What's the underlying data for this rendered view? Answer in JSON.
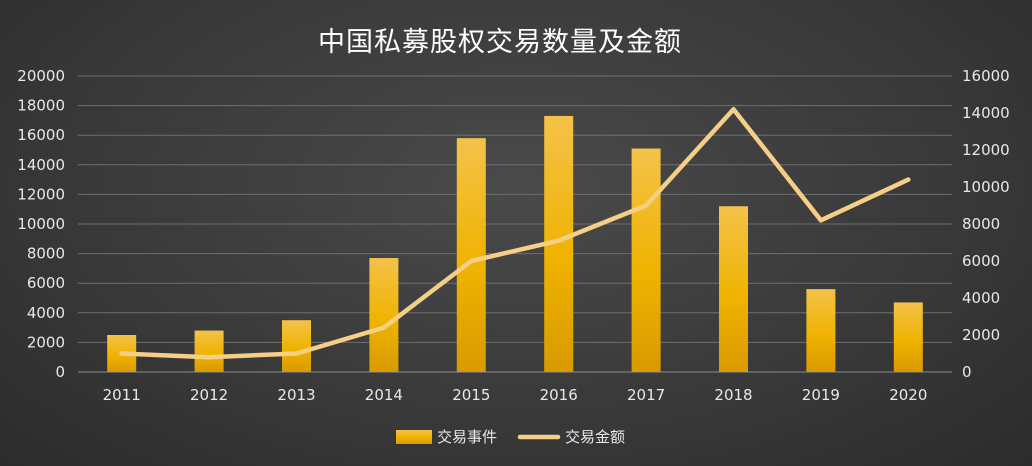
{
  "chart_data": {
    "type": "bar+line",
    "title": "中国私募股权交易数量及金额",
    "categories": [
      "2011",
      "2012",
      "2013",
      "2014",
      "2015",
      "2016",
      "2017",
      "2018",
      "2019",
      "2020"
    ],
    "series": [
      {
        "name": "交易事件",
        "type": "bar",
        "axis": "left",
        "values": [
          2500,
          2800,
          3500,
          7700,
          15800,
          17300,
          15100,
          11200,
          5600,
          4700
        ]
      },
      {
        "name": "交易金额",
        "type": "line",
        "axis": "right",
        "values": [
          1000,
          800,
          1000,
          2400,
          6000,
          7100,
          9000,
          14200,
          8200,
          10400
        ]
      }
    ],
    "y_left": {
      "min": 0,
      "max": 20000,
      "step": 2000
    },
    "y_right": {
      "min": 0,
      "max": 16000,
      "step": 2000
    },
    "grid": true,
    "legend_position": "bottom",
    "colors": {
      "bar": "#f0b400",
      "line": "#f6cf86",
      "grid": "#6e6e6e"
    }
  }
}
